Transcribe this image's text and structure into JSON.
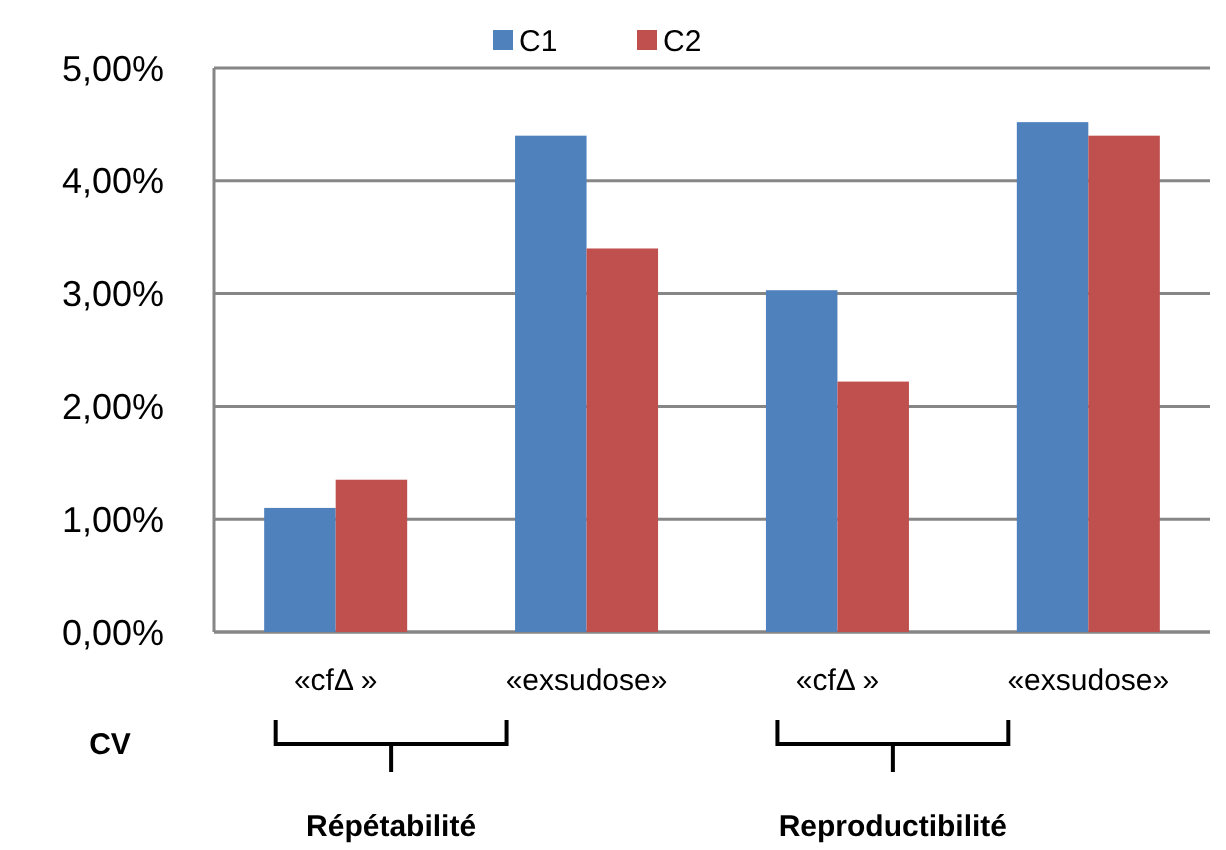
{
  "chart_data": {
    "type": "bar",
    "categories": [
      "«cfΔ »",
      "«exsudose»",
      "«cfΔ »",
      "«exsudose»"
    ],
    "series": [
      {
        "name": "C1",
        "color": "#4f81bd",
        "values": [
          1.1,
          4.4,
          3.03,
          4.52
        ]
      },
      {
        "name": "C2",
        "color": "#c0504d",
        "values": [
          1.35,
          3.4,
          2.22,
          4.4
        ]
      }
    ],
    "ylim": [
      0,
      5
    ],
    "yticks": [
      {
        "value": 0,
        "label": "0,00%"
      },
      {
        "value": 1,
        "label": "1,00%"
      },
      {
        "value": 2,
        "label": "2,00%"
      },
      {
        "value": 3,
        "label": "3,00%"
      },
      {
        "value": 4,
        "label": "4,00%"
      },
      {
        "value": 5,
        "label": "5,00%"
      }
    ],
    "grid": "y",
    "legend": "top",
    "annotations": [
      "CV",
      "Répétabilité",
      "Reproductibilité"
    ]
  }
}
